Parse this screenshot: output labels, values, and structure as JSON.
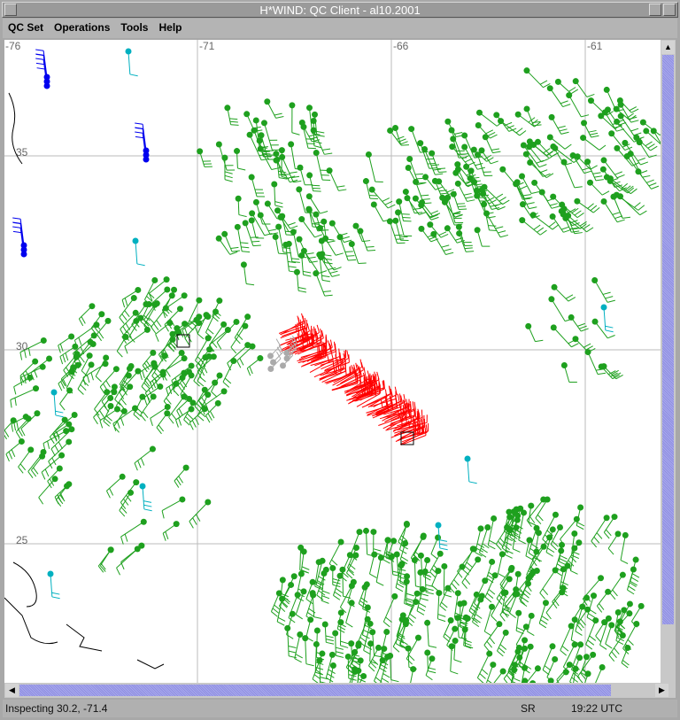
{
  "window": {
    "title": "H*WIND: QC Client - al10.2001"
  },
  "menu": [
    "QC Set",
    "Operations",
    "Tools",
    "Help"
  ],
  "map": {
    "longitude_labels": [
      "-76",
      "-71",
      "-66",
      "-61"
    ],
    "latitude_labels": [
      "35",
      "30",
      "25"
    ],
    "observation_colors": {
      "accepted": "#1ea01e",
      "flagged": "#ff0000",
      "other": "#00b0c0",
      "buoy": "#0000ee",
      "excluded": "#aaaaaa"
    }
  },
  "status": {
    "message": "Inspecting 30.2, -71.4",
    "mode": "SR",
    "time": "19:22 UTC"
  }
}
